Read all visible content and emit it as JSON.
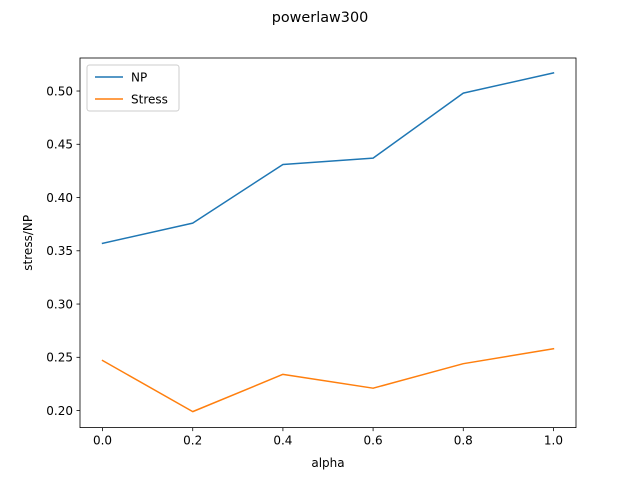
{
  "chart_data": {
    "type": "line",
    "title": "powerlaw300",
    "xlabel": "alpha",
    "ylabel": "stress/NP",
    "x": [
      0.0,
      0.2,
      0.4,
      0.6,
      0.8,
      1.0
    ],
    "xlim": [
      -0.05,
      1.05
    ],
    "ylim": [
      0.184,
      0.531
    ],
    "xticks": [
      "0.0",
      "0.2",
      "0.4",
      "0.6",
      "0.8",
      "1.0"
    ],
    "yticks": [
      "0.20",
      "0.25",
      "0.30",
      "0.35",
      "0.40",
      "0.45",
      "0.50"
    ],
    "grid": false,
    "legend_position": "upper-left",
    "series": [
      {
        "name": "NP",
        "color": "#1f77b4",
        "values": [
          0.357,
          0.376,
          0.431,
          0.437,
          0.498,
          0.517
        ]
      },
      {
        "name": "Stress",
        "color": "#ff7f0e",
        "values": [
          0.247,
          0.199,
          0.234,
          0.221,
          0.244,
          0.258
        ]
      }
    ]
  }
}
